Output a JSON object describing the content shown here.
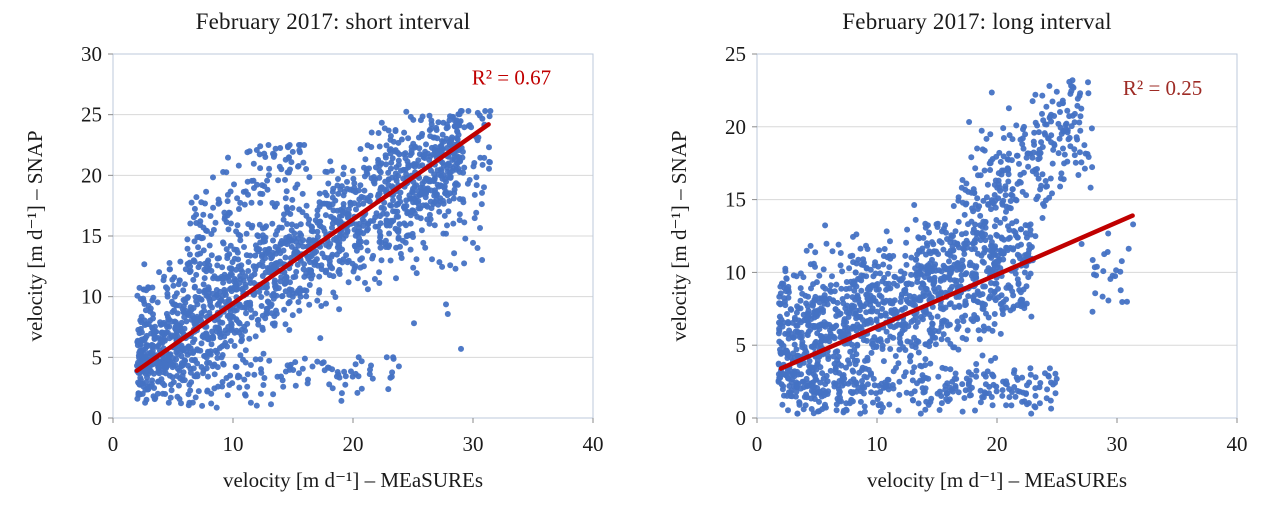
{
  "page": {
    "background": "#ffffff"
  },
  "plot_style": {
    "grid_color": "#D8D8D8",
    "border_color": "#BCC9DB",
    "tick_color": "#8A8A8A",
    "text_color": "#1A1A1A"
  },
  "chart_data": [
    {
      "type": "scatter",
      "title": "February 2017: short interval",
      "xlabel": "velocity [m d⁻¹] – MEaSUREs",
      "ylabel": "velocity [m d⁻¹] – SNAP",
      "xlim": [
        0,
        40
      ],
      "ylim": [
        0,
        30
      ],
      "xticks": [
        0,
        10,
        20,
        30,
        40
      ],
      "yticks": [
        0,
        5,
        10,
        15,
        20,
        25,
        30
      ],
      "grid": "horizontal",
      "legend": "none",
      "point_color": "#4472C4",
      "line_color": "#C00000",
      "seed": 42,
      "r2": {
        "label": "R² = 0.67",
        "value": 0.67,
        "x": 33.2,
        "y": 27.5,
        "color": "#C00000"
      },
      "trendline": {
        "x1": 2.0,
        "y1": 3.9,
        "x2": 31.3,
        "y2": 24.2
      },
      "point_clusters": [
        {
          "n": 1500,
          "x": [
            2,
            29
          ],
          "pow": 1.25,
          "slope": 0.66,
          "intercept": 3.2,
          "sigma": 2.7,
          "clip": [
            1.2,
            25.3
          ]
        },
        {
          "n": 130,
          "x": [
            6,
            16
          ],
          "pow": 1.0,
          "slope": 0.9,
          "intercept": 8.0,
          "sigma": 2.2,
          "clip": [
            12,
            22.5
          ]
        },
        {
          "n": 160,
          "x": [
            22,
            31.5
          ],
          "pow": 0.8,
          "slope": 0.5,
          "intercept": 7.0,
          "sigma": 4.5,
          "clip": [
            2,
            25.3
          ]
        },
        {
          "n": 110,
          "x": [
            4,
            24
          ],
          "pow": 1.0,
          "slope": 0.1,
          "intercept": 1.8,
          "sigma": 1.1,
          "clip": [
            0.8,
            5
          ]
        }
      ]
    },
    {
      "type": "scatter",
      "title": "February 2017: long interval",
      "xlabel": "velocity [m d⁻¹] – MEaSUREs",
      "ylabel": "velocity [m d⁻¹] – SNAP",
      "xlim": [
        0,
        40
      ],
      "ylim": [
        0,
        25
      ],
      "xticks": [
        0,
        10,
        20,
        30,
        40
      ],
      "yticks": [
        0,
        5,
        10,
        15,
        20,
        25
      ],
      "grid": "horizontal",
      "legend": "none",
      "point_color": "#4472C4",
      "line_color": "#C00000",
      "seed": 1337,
      "r2": {
        "label": "R² = 0.25",
        "value": 0.25,
        "x": 33.8,
        "y": 22.2,
        "color": "#9E2B25"
      },
      "trendline": {
        "x1": 2.0,
        "y1": 3.4,
        "x2": 31.3,
        "y2": 13.9
      },
      "point_clusters": [
        {
          "n": 1100,
          "x": [
            1.8,
            23
          ],
          "pow": 1.15,
          "slope": 0.3,
          "intercept": 4.2,
          "sigma": 2.5,
          "clip": [
            0.5,
            13.5
          ]
        },
        {
          "n": 260,
          "x": [
            3,
            25
          ],
          "pow": 1.0,
          "slope": 0.02,
          "intercept": 1.6,
          "sigma": 0.9,
          "clip": [
            0.3,
            3.8
          ]
        },
        {
          "n": 240,
          "x": [
            17,
            28
          ],
          "pow": 0.85,
          "slope": 0.55,
          "intercept": 5.5,
          "sigma": 2.6,
          "clip": [
            11,
            23.2
          ]
        },
        {
          "n": 110,
          "x": [
            13,
            21
          ],
          "pow": 1.0,
          "slope": 0.9,
          "intercept": -4.0,
          "sigma": 2.8,
          "clip": [
            4,
            17
          ]
        },
        {
          "n": 25,
          "x": [
            27,
            31.5
          ],
          "pow": 1.0,
          "slope": 0.0,
          "intercept": 10.0,
          "sigma": 2.2,
          "clip": [
            6.5,
            14
          ]
        }
      ]
    }
  ]
}
